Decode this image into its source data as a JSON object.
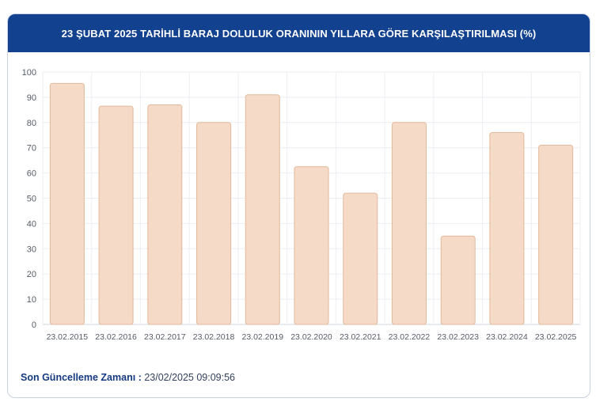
{
  "header": {
    "title": "23 ŞUBAT 2025 TARİHLİ BARAJ DOLULUK ORANININ YILLARA GÖRE KARŞILAŞTIRILMASI (%)"
  },
  "footer": {
    "label": "Son Güncelleme Zamanı :",
    "value": "23/02/2025 09:09:56"
  },
  "colors": {
    "header_bg": "#12418f",
    "bar_fill": "#f5dac8",
    "bar_stroke": "#e2b99a"
  },
  "chart_data": {
    "type": "bar",
    "title": "23 ŞUBAT 2025 TARİHLİ BARAJ DOLULUK ORANININ YILLARA GÖRE KARŞILAŞTIRILMASI (%)",
    "categories": [
      "23.02.2015",
      "23.02.2016",
      "23.02.2017",
      "23.02.2018",
      "23.02.2019",
      "23.02.2020",
      "23.02.2021",
      "23.02.2022",
      "23.02.2023",
      "23.02.2024",
      "23.02.2025"
    ],
    "values": [
      95.5,
      86.5,
      87,
      80,
      91,
      62.5,
      52,
      80,
      35,
      76,
      71
    ],
    "xlabel": "",
    "ylabel": "",
    "ylim": [
      0,
      100
    ],
    "yticks": [
      0,
      10,
      20,
      30,
      40,
      50,
      60,
      70,
      80,
      90,
      100
    ],
    "grid": true,
    "legend": "none"
  }
}
